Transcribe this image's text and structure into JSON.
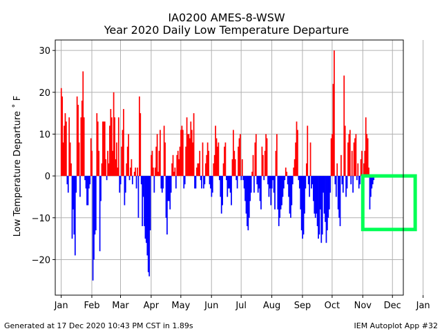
{
  "chart_data": {
    "type": "bar",
    "title": "IA0200 AMES-8-WSW",
    "subtitle": "Year 2020 Daily Low Temperature Departure",
    "xlabel": "",
    "ylabel": "Low Temperature Departure ˚ F",
    "ylim": [
      -28.5,
      32.5
    ],
    "yticks": [
      -20,
      -10,
      0,
      10,
      20,
      30
    ],
    "ytick_labels": [
      "−20",
      "−10",
      "0",
      "10",
      "20",
      "30"
    ],
    "xlim": [
      -6,
      346
    ],
    "xticks": [
      {
        "label": "Jan",
        "day": 0
      },
      {
        "label": "Feb",
        "day": 31
      },
      {
        "label": "Mar",
        "day": 60
      },
      {
        "label": "Apr",
        "day": 91
      },
      {
        "label": "May",
        "day": 121
      },
      {
        "label": "Jun",
        "day": 152
      },
      {
        "label": "Jul",
        "day": 182
      },
      {
        "label": "Aug",
        "day": 213
      },
      {
        "label": "Sep",
        "day": 244
      },
      {
        "label": "Oct",
        "day": 274
      },
      {
        "label": "Nov",
        "day": 305
      },
      {
        "label": "Dec",
        "day": 335
      },
      {
        "label": "Jan",
        "day": 366
      }
    ],
    "grid": true,
    "positive_color": "#ff0000",
    "negative_color": "#0000ff",
    "highlight": {
      "color": "#00ff55",
      "day_start": 305,
      "day_end": 358,
      "y_top": 0,
      "y_bottom": -12.8
    },
    "series": [
      {
        "start_date": "2020-01-01",
        "values": [
          21,
          19,
          8,
          12,
          15,
          13,
          -2,
          -4,
          14,
          8,
          3,
          -15,
          -8,
          -14,
          -19,
          -4,
          19,
          17,
          8,
          -5,
          14,
          18,
          25,
          14,
          -1,
          -3,
          -7,
          -7,
          -3,
          -2,
          9,
          6,
          -25,
          -20,
          -14,
          -13,
          15,
          13,
          6,
          -18,
          -6,
          3,
          13,
          13,
          13,
          4,
          -1,
          6,
          3,
          12,
          16,
          14,
          6,
          20,
          14,
          4,
          8,
          2,
          14,
          -4,
          -2,
          7,
          11,
          16,
          -7,
          -4,
          3,
          7,
          10,
          -1,
          2,
          4,
          -2,
          0,
          1,
          2,
          -3,
          2,
          -10,
          19,
          15,
          -2,
          -12,
          -5,
          -12,
          -15,
          -16,
          -19,
          -23,
          -24,
          -13,
          5,
          6,
          2,
          -4,
          2,
          7,
          10,
          1,
          6,
          11,
          -3,
          -4,
          -3,
          12,
          8,
          -10,
          -14,
          -6,
          -6,
          -8,
          -4,
          3,
          5,
          1,
          2,
          -3,
          5,
          6,
          4,
          7,
          11,
          12,
          11,
          -3,
          -2,
          7,
          14,
          10,
          10,
          9,
          13,
          11,
          8,
          15,
          -3,
          -3,
          2,
          3,
          3,
          6,
          -1,
          -3,
          8,
          -3,
          -2,
          3,
          5,
          8,
          6,
          -2,
          -3,
          -5,
          -4,
          3,
          5,
          12,
          9,
          7,
          8,
          -1,
          -5,
          -9,
          -7,
          3,
          7,
          8,
          -1,
          -5,
          -3,
          -3,
          -4,
          -7,
          4,
          11,
          6,
          4,
          -1,
          -3,
          7,
          9,
          10,
          -1,
          4,
          -1,
          -3,
          -6,
          -9,
          -12,
          -13,
          -10,
          -6,
          -4,
          1,
          5,
          -4,
          8,
          10,
          -2,
          -4,
          -3,
          -6,
          -8,
          7,
          5,
          -1,
          6,
          10,
          9,
          -2,
          -5,
          -3,
          -7,
          -3,
          -1,
          -4,
          -8,
          6,
          10,
          -8,
          -12,
          -10,
          -8,
          -7,
          -5,
          -3,
          -1,
          2,
          1,
          -2,
          -5,
          -9,
          -10,
          -7,
          -2,
          2,
          4,
          8,
          13,
          11,
          -1,
          -3,
          -8,
          -13,
          -15,
          -14,
          -9,
          -3,
          3,
          12,
          -2,
          -5,
          8,
          -3,
          -2,
          -6,
          -9,
          -10,
          -9,
          -12,
          -15,
          -14,
          -8,
          -16,
          -14,
          -4,
          -9,
          -11,
          -16,
          -13,
          -10,
          -8,
          -4,
          9,
          10,
          22,
          30,
          -2,
          -5,
          3,
          -8,
          -10,
          -12,
          5,
          -2,
          -4,
          24,
          12,
          -5,
          -3,
          8,
          10,
          11,
          -2,
          6,
          -4,
          8,
          9,
          10,
          -1,
          3,
          -3,
          -2,
          4,
          6,
          -1,
          3,
          6,
          14,
          10,
          9,
          2,
          -8,
          -5,
          -3,
          -2,
          -1
        ]
      }
    ]
  },
  "footer": {
    "left": "Generated at 17 Dec 2020 10:43 PM CST in 1.89s",
    "right": "IEM Autoplot App #32"
  }
}
